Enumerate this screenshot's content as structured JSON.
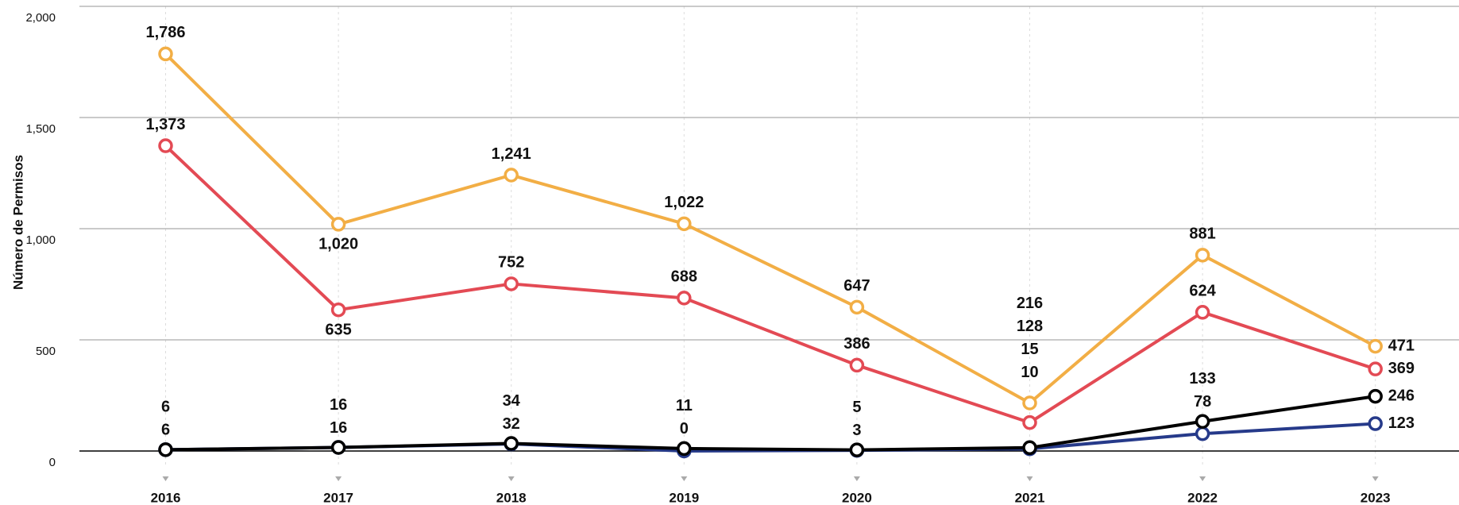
{
  "chart_data": {
    "type": "line",
    "y_label": "Número de Permisos",
    "categories": [
      "2016",
      "2017",
      "2018",
      "2019",
      "2020",
      "2021",
      "2022",
      "2023"
    ],
    "series": [
      {
        "color": "#263a8a",
        "values": [
          6,
          16,
          32,
          0,
          3,
          10,
          78,
          123
        ],
        "value_labels": [
          "6",
          "16",
          "32",
          "0",
          "3",
          "10",
          "78",
          "123"
        ]
      },
      {
        "color": "#000000",
        "values": [
          6,
          16,
          34,
          11,
          5,
          15,
          133,
          246
        ],
        "value_labels": [
          "6",
          "16",
          "34",
          "11",
          "5",
          "15",
          "133",
          "246"
        ]
      },
      {
        "color": "#e34a54",
        "values": [
          1373,
          635,
          752,
          688,
          386,
          128,
          624,
          369
        ],
        "value_labels": [
          "1,373",
          "635",
          "752",
          "688",
          "386",
          "128",
          "624",
          "369"
        ]
      },
      {
        "color": "#f2ae45",
        "values": [
          1786,
          1020,
          1241,
          1022,
          647,
          216,
          881,
          471
        ],
        "value_labels": [
          "1,786",
          "1,020",
          "1,241",
          "1,022",
          "647",
          "216",
          "881",
          "471"
        ]
      }
    ],
    "ylim": [
      0,
      2000
    ],
    "yticks": [
      0,
      500,
      {
        "value": 1000,
        "label": "1,000"
      },
      {
        "value": 1500,
        "label": "1,500"
      },
      {
        "value": 2000,
        "label": "2,000"
      }
    ],
    "grid": true
  }
}
